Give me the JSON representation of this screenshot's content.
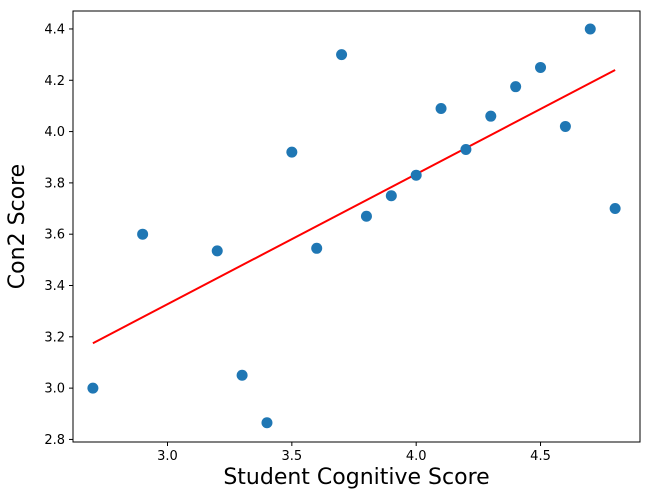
{
  "chart_data": {
    "type": "scatter",
    "title": "",
    "xlabel": "Student Cognitive Score",
    "ylabel": "Con2 Score",
    "xlim": [
      2.62,
      4.9
    ],
    "ylim": [
      2.79,
      4.47
    ],
    "x_ticks": [
      3.0,
      3.5,
      4.0,
      4.5
    ],
    "x_tick_labels": [
      "3.0",
      "3.5",
      "4.0",
      "4.5"
    ],
    "y_ticks": [
      2.8,
      3.0,
      3.2,
      3.4,
      3.6,
      3.8,
      4.0,
      4.2,
      4.4
    ],
    "y_tick_labels": [
      "2.8",
      "3.0",
      "3.2",
      "3.4",
      "3.6",
      "3.8",
      "4.0",
      "4.2",
      "4.4"
    ],
    "grid": false,
    "legend": "none",
    "series": [
      {
        "type": "scatter",
        "color": "#1f77b4",
        "points": [
          {
            "x": 2.7,
            "y": 3.0
          },
          {
            "x": 2.9,
            "y": 3.6
          },
          {
            "x": 3.2,
            "y": 3.535
          },
          {
            "x": 3.3,
            "y": 3.05
          },
          {
            "x": 3.4,
            "y": 2.865
          },
          {
            "x": 3.5,
            "y": 3.92
          },
          {
            "x": 3.6,
            "y": 3.545
          },
          {
            "x": 3.7,
            "y": 4.3
          },
          {
            "x": 3.8,
            "y": 3.67
          },
          {
            "x": 3.9,
            "y": 3.75
          },
          {
            "x": 4.0,
            "y": 3.83
          },
          {
            "x": 4.1,
            "y": 4.09
          },
          {
            "x": 4.2,
            "y": 3.93
          },
          {
            "x": 4.3,
            "y": 4.06
          },
          {
            "x": 4.4,
            "y": 4.175
          },
          {
            "x": 4.5,
            "y": 4.25
          },
          {
            "x": 4.6,
            "y": 4.02
          },
          {
            "x": 4.7,
            "y": 4.4
          },
          {
            "x": 4.8,
            "y": 3.7
          }
        ]
      },
      {
        "type": "line",
        "color": "#ff0000",
        "points": [
          {
            "x": 2.7,
            "y": 3.175
          },
          {
            "x": 4.8,
            "y": 4.24
          }
        ]
      }
    ]
  }
}
